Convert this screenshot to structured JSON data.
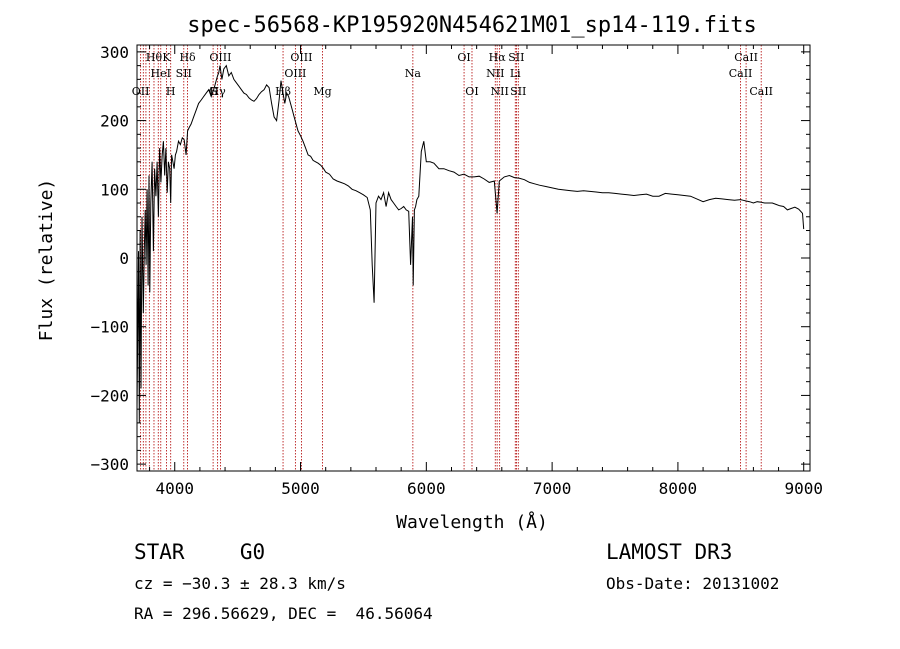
{
  "chart_data": {
    "type": "line",
    "title": "spec-56568-KP195920N454621M01_sp14-119.fits",
    "xlabel": "Wavelength (Å)",
    "ylabel": "Flux (relative)",
    "xlim": [
      3700,
      9050
    ],
    "ylim": [
      -310,
      310
    ],
    "xticks": [
      4000,
      5000,
      6000,
      7000,
      8000,
      9000
    ],
    "yticks": [
      -300,
      -200,
      -100,
      0,
      100,
      200,
      300
    ],
    "xtick_labels": [
      "4000",
      "5000",
      "6000",
      "7000",
      "8000",
      "9000"
    ],
    "ytick_labels": [
      "−300",
      "−200",
      "−100",
      "0",
      "100",
      "200",
      "300"
    ],
    "series": [
      {
        "name": "flux",
        "x": [
          3700,
          3712,
          3718,
          3725,
          3732,
          3740,
          3750,
          3758,
          3765,
          3772,
          3780,
          3788,
          3795,
          3802,
          3810,
          3820,
          3830,
          3840,
          3850,
          3860,
          3870,
          3880,
          3890,
          3900,
          3910,
          3920,
          3930,
          3940,
          3950,
          3960,
          3968,
          3975,
          3985,
          3995,
          4005,
          4015,
          4030,
          4045,
          4060,
          4075,
          4090,
          4102,
          4115,
          4130,
          4150,
          4170,
          4190,
          4210,
          4230,
          4250,
          4270,
          4290,
          4310,
          4325,
          4340,
          4350,
          4360,
          4375,
          4390,
          4410,
          4430,
          4450,
          4470,
          4490,
          4510,
          4530,
          4550,
          4570,
          4590,
          4610,
          4630,
          4650,
          4670,
          4690,
          4710,
          4730,
          4750,
          4770,
          4790,
          4810,
          4830,
          4845,
          4861,
          4875,
          4890,
          4905,
          4920,
          4935,
          4950,
          4965,
          4980,
          5000,
          5020,
          5040,
          5060,
          5080,
          5100,
          5120,
          5140,
          5160,
          5183,
          5200,
          5230,
          5260,
          5290,
          5320,
          5350,
          5380,
          5410,
          5440,
          5470,
          5500,
          5530,
          5555,
          5570,
          5585,
          5600,
          5620,
          5640,
          5660,
          5680,
          5700,
          5720,
          5740,
          5760,
          5780,
          5800,
          5820,
          5840,
          5860,
          5875,
          5890,
          5896,
          5905,
          5915,
          5925,
          5940,
          5960,
          5980,
          6000,
          6030,
          6060,
          6100,
          6140,
          6180,
          6220,
          6260,
          6300,
          6340,
          6380,
          6420,
          6460,
          6500,
          6540,
          6563,
          6580,
          6620,
          6660,
          6700,
          6740,
          6780,
          6820,
          6860,
          6900,
          6950,
          7000,
          7050,
          7100,
          7150,
          7200,
          7250,
          7300,
          7350,
          7400,
          7450,
          7500,
          7550,
          7600,
          7650,
          7700,
          7750,
          7800,
          7850,
          7900,
          7950,
          8000,
          8050,
          8100,
          8150,
          8200,
          8250,
          8300,
          8350,
          8400,
          8450,
          8498,
          8520,
          8542,
          8570,
          8600,
          8630,
          8662,
          8690,
          8720,
          8750,
          8780,
          8810,
          8840,
          8870,
          8900,
          8930,
          8960,
          8990,
          9000
        ],
        "y": [
          -220,
          10,
          -240,
          40,
          -190,
          60,
          -80,
          10,
          70,
          -10,
          100,
          -40,
          120,
          -50,
          80,
          140,
          10,
          130,
          90,
          140,
          60,
          160,
          110,
          150,
          170,
          120,
          160,
          95,
          140,
          130,
          80,
          150,
          140,
          130,
          150,
          155,
          170,
          165,
          175,
          172,
          150,
          185,
          190,
          195,
          205,
          215,
          225,
          230,
          235,
          240,
          245,
          235,
          245,
          255,
          265,
          270,
          280,
          260,
          275,
          280,
          265,
          270,
          260,
          255,
          250,
          245,
          240,
          238,
          233,
          230,
          228,
          232,
          238,
          242,
          245,
          252,
          248,
          225,
          205,
          200,
          230,
          258,
          240,
          225,
          240,
          235,
          225,
          215,
          205,
          195,
          185,
          178,
          170,
          160,
          150,
          148,
          142,
          140,
          138,
          135,
          130,
          125,
          122,
          115,
          112,
          110,
          108,
          105,
          100,
          98,
          95,
          92,
          88,
          70,
          -10,
          -65,
          80,
          90,
          85,
          95,
          75,
          95,
          85,
          80,
          75,
          70,
          72,
          75,
          70,
          68,
          -10,
          60,
          -40,
          70,
          75,
          85,
          90,
          155,
          170,
          140,
          140,
          138,
          130,
          130,
          127,
          125,
          120,
          122,
          118,
          118,
          119,
          115,
          110,
          112,
          65,
          112,
          118,
          120,
          117,
          116,
          114,
          110,
          108,
          106,
          104,
          102,
          100,
          99,
          98,
          97,
          98,
          97,
          96,
          95,
          95,
          94,
          93,
          92,
          91,
          92,
          93,
          90,
          90,
          94,
          93,
          92,
          91,
          90,
          86,
          82,
          85,
          87,
          86,
          85,
          84,
          85,
          84,
          83,
          82,
          80,
          82,
          81,
          80,
          80,
          80,
          78,
          76,
          75,
          70,
          72,
          74,
          71,
          65,
          42
        ]
      }
    ],
    "line_markers": [
      {
        "wavelength": 3729,
        "label": "OII",
        "row": 3
      },
      {
        "wavelength": 3750,
        "label": "",
        "row": 0
      },
      {
        "wavelength": 3771,
        "label": "",
        "row": 0
      },
      {
        "wavelength": 3798,
        "label": "",
        "row": 0
      },
      {
        "wavelength": 3835,
        "label": "Hθ",
        "row": 1
      },
      {
        "wavelength": 3869,
        "label": "",
        "row": 0
      },
      {
        "wavelength": 3889,
        "label": "HeI",
        "row": 2
      },
      {
        "wavelength": 3934,
        "label": "K",
        "row": 1
      },
      {
        "wavelength": 3968,
        "label": "H",
        "row": 3
      },
      {
        "wavelength": 4072,
        "label": "SII",
        "row": 2
      },
      {
        "wavelength": 4102,
        "label": "Hδ",
        "row": 1
      },
      {
        "wavelength": 4305,
        "label": "G",
        "row": 3
      },
      {
        "wavelength": 4341,
        "label": "Hγ",
        "row": 3
      },
      {
        "wavelength": 4363,
        "label": "OIII",
        "row": 1
      },
      {
        "wavelength": 4861,
        "label": "Hβ",
        "row": 3
      },
      {
        "wavelength": 4959,
        "label": "OIII",
        "row": 2
      },
      {
        "wavelength": 5007,
        "label": "OIII",
        "row": 1
      },
      {
        "wavelength": 5175,
        "label": "Mg",
        "row": 3
      },
      {
        "wavelength": 5893,
        "label": "Na",
        "row": 2
      },
      {
        "wavelength": 6300,
        "label": "OI",
        "row": 1
      },
      {
        "wavelength": 6363,
        "label": "OI",
        "row": 3
      },
      {
        "wavelength": 6548,
        "label": "NII",
        "row": 2
      },
      {
        "wavelength": 6563,
        "label": "Hα",
        "row": 1
      },
      {
        "wavelength": 6583,
        "label": "NII",
        "row": 3
      },
      {
        "wavelength": 6707,
        "label": "Li",
        "row": 2
      },
      {
        "wavelength": 6716,
        "label": "SII",
        "row": 1
      },
      {
        "wavelength": 6731,
        "label": "SII",
        "row": 3
      },
      {
        "wavelength": 8498,
        "label": "CaII",
        "row": 2
      },
      {
        "wavelength": 8542,
        "label": "CaII",
        "row": 1
      },
      {
        "wavelength": 8662,
        "label": "CaII",
        "row": 3
      }
    ],
    "colors": {
      "spectrum": "#000000",
      "line_markers": "#b00000",
      "axes": "#000000"
    }
  },
  "info": {
    "object_class": "STAR",
    "subclass": "G0",
    "survey": "LAMOST DR3",
    "cz": "cz = −30.3 ± 28.3 km/s",
    "obs_date": "Obs-Date: 20131002",
    "radec": "RA = 296.56629, DEC =  46.56064"
  }
}
